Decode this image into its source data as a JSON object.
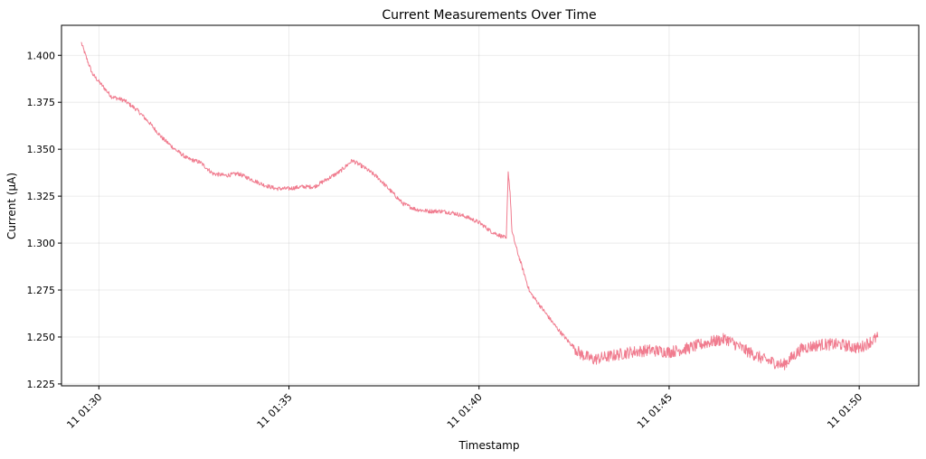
{
  "chart_data": {
    "type": "line",
    "title": "Current Measurements Over Time",
    "xlabel": "Timestamp",
    "ylabel": "Current (µA)",
    "grid": true,
    "legend": "none",
    "x_ticks": [
      "11 01:30",
      "11 01:35",
      "11 01:40",
      "11 01:45",
      "11 01:50"
    ],
    "x_tick_values": [
      "01:30",
      "01:35",
      "01:40",
      "01:45",
      "01:50"
    ],
    "xlim": [
      "01:29:01",
      "01:51:34"
    ],
    "ylim": [
      1.224,
      1.416
    ],
    "y_ticks": [
      "1.225",
      "1.250",
      "1.275",
      "1.300",
      "1.325",
      "1.350",
      "1.375",
      "1.400"
    ],
    "series": [
      {
        "color": "#f07c8f",
        "x": [
          "01:29:32",
          "01:29:40",
          "01:29:50",
          "01:30:00",
          "01:30:20",
          "01:30:40",
          "01:31:00",
          "01:31:20",
          "01:31:40",
          "01:32:00",
          "01:32:20",
          "01:32:40",
          "01:33:00",
          "01:33:20",
          "01:33:40",
          "01:34:00",
          "01:34:20",
          "01:34:40",
          "01:35:00",
          "01:35:20",
          "01:35:40",
          "01:36:00",
          "01:36:20",
          "01:36:40",
          "01:37:00",
          "01:37:20",
          "01:37:40",
          "01:38:00",
          "01:38:20",
          "01:38:40",
          "01:39:00",
          "01:39:20",
          "01:39:40",
          "01:40:00",
          "01:40:20",
          "01:40:40",
          "01:40:43",
          "01:40:46",
          "01:40:49",
          "01:40:52",
          "01:41:00",
          "01:41:10",
          "01:41:20",
          "01:41:40",
          "01:42:00",
          "01:42:20",
          "01:42:40",
          "01:43:00",
          "01:43:30",
          "01:44:00",
          "01:44:30",
          "01:45:00",
          "01:45:30",
          "01:46:00",
          "01:46:30",
          "01:47:00",
          "01:47:30",
          "01:48:00",
          "01:48:30",
          "01:49:00",
          "01:49:30",
          "01:50:00",
          "01:50:30"
        ],
        "y": [
          1.407,
          1.399,
          1.39,
          1.386,
          1.378,
          1.376,
          1.371,
          1.364,
          1.356,
          1.35,
          1.345,
          1.343,
          1.337,
          1.336,
          1.337,
          1.334,
          1.331,
          1.329,
          1.329,
          1.33,
          1.33,
          1.334,
          1.338,
          1.344,
          1.34,
          1.335,
          1.328,
          1.321,
          1.318,
          1.317,
          1.317,
          1.316,
          1.314,
          1.311,
          1.306,
          1.303,
          1.302,
          1.338,
          1.327,
          1.306,
          1.296,
          1.285,
          1.274,
          1.265,
          1.256,
          1.248,
          1.241,
          1.238,
          1.24,
          1.242,
          1.243,
          1.242,
          1.244,
          1.247,
          1.249,
          1.243,
          1.238,
          1.235,
          1.244,
          1.246,
          1.246,
          1.244,
          1.25
        ]
      }
    ]
  }
}
